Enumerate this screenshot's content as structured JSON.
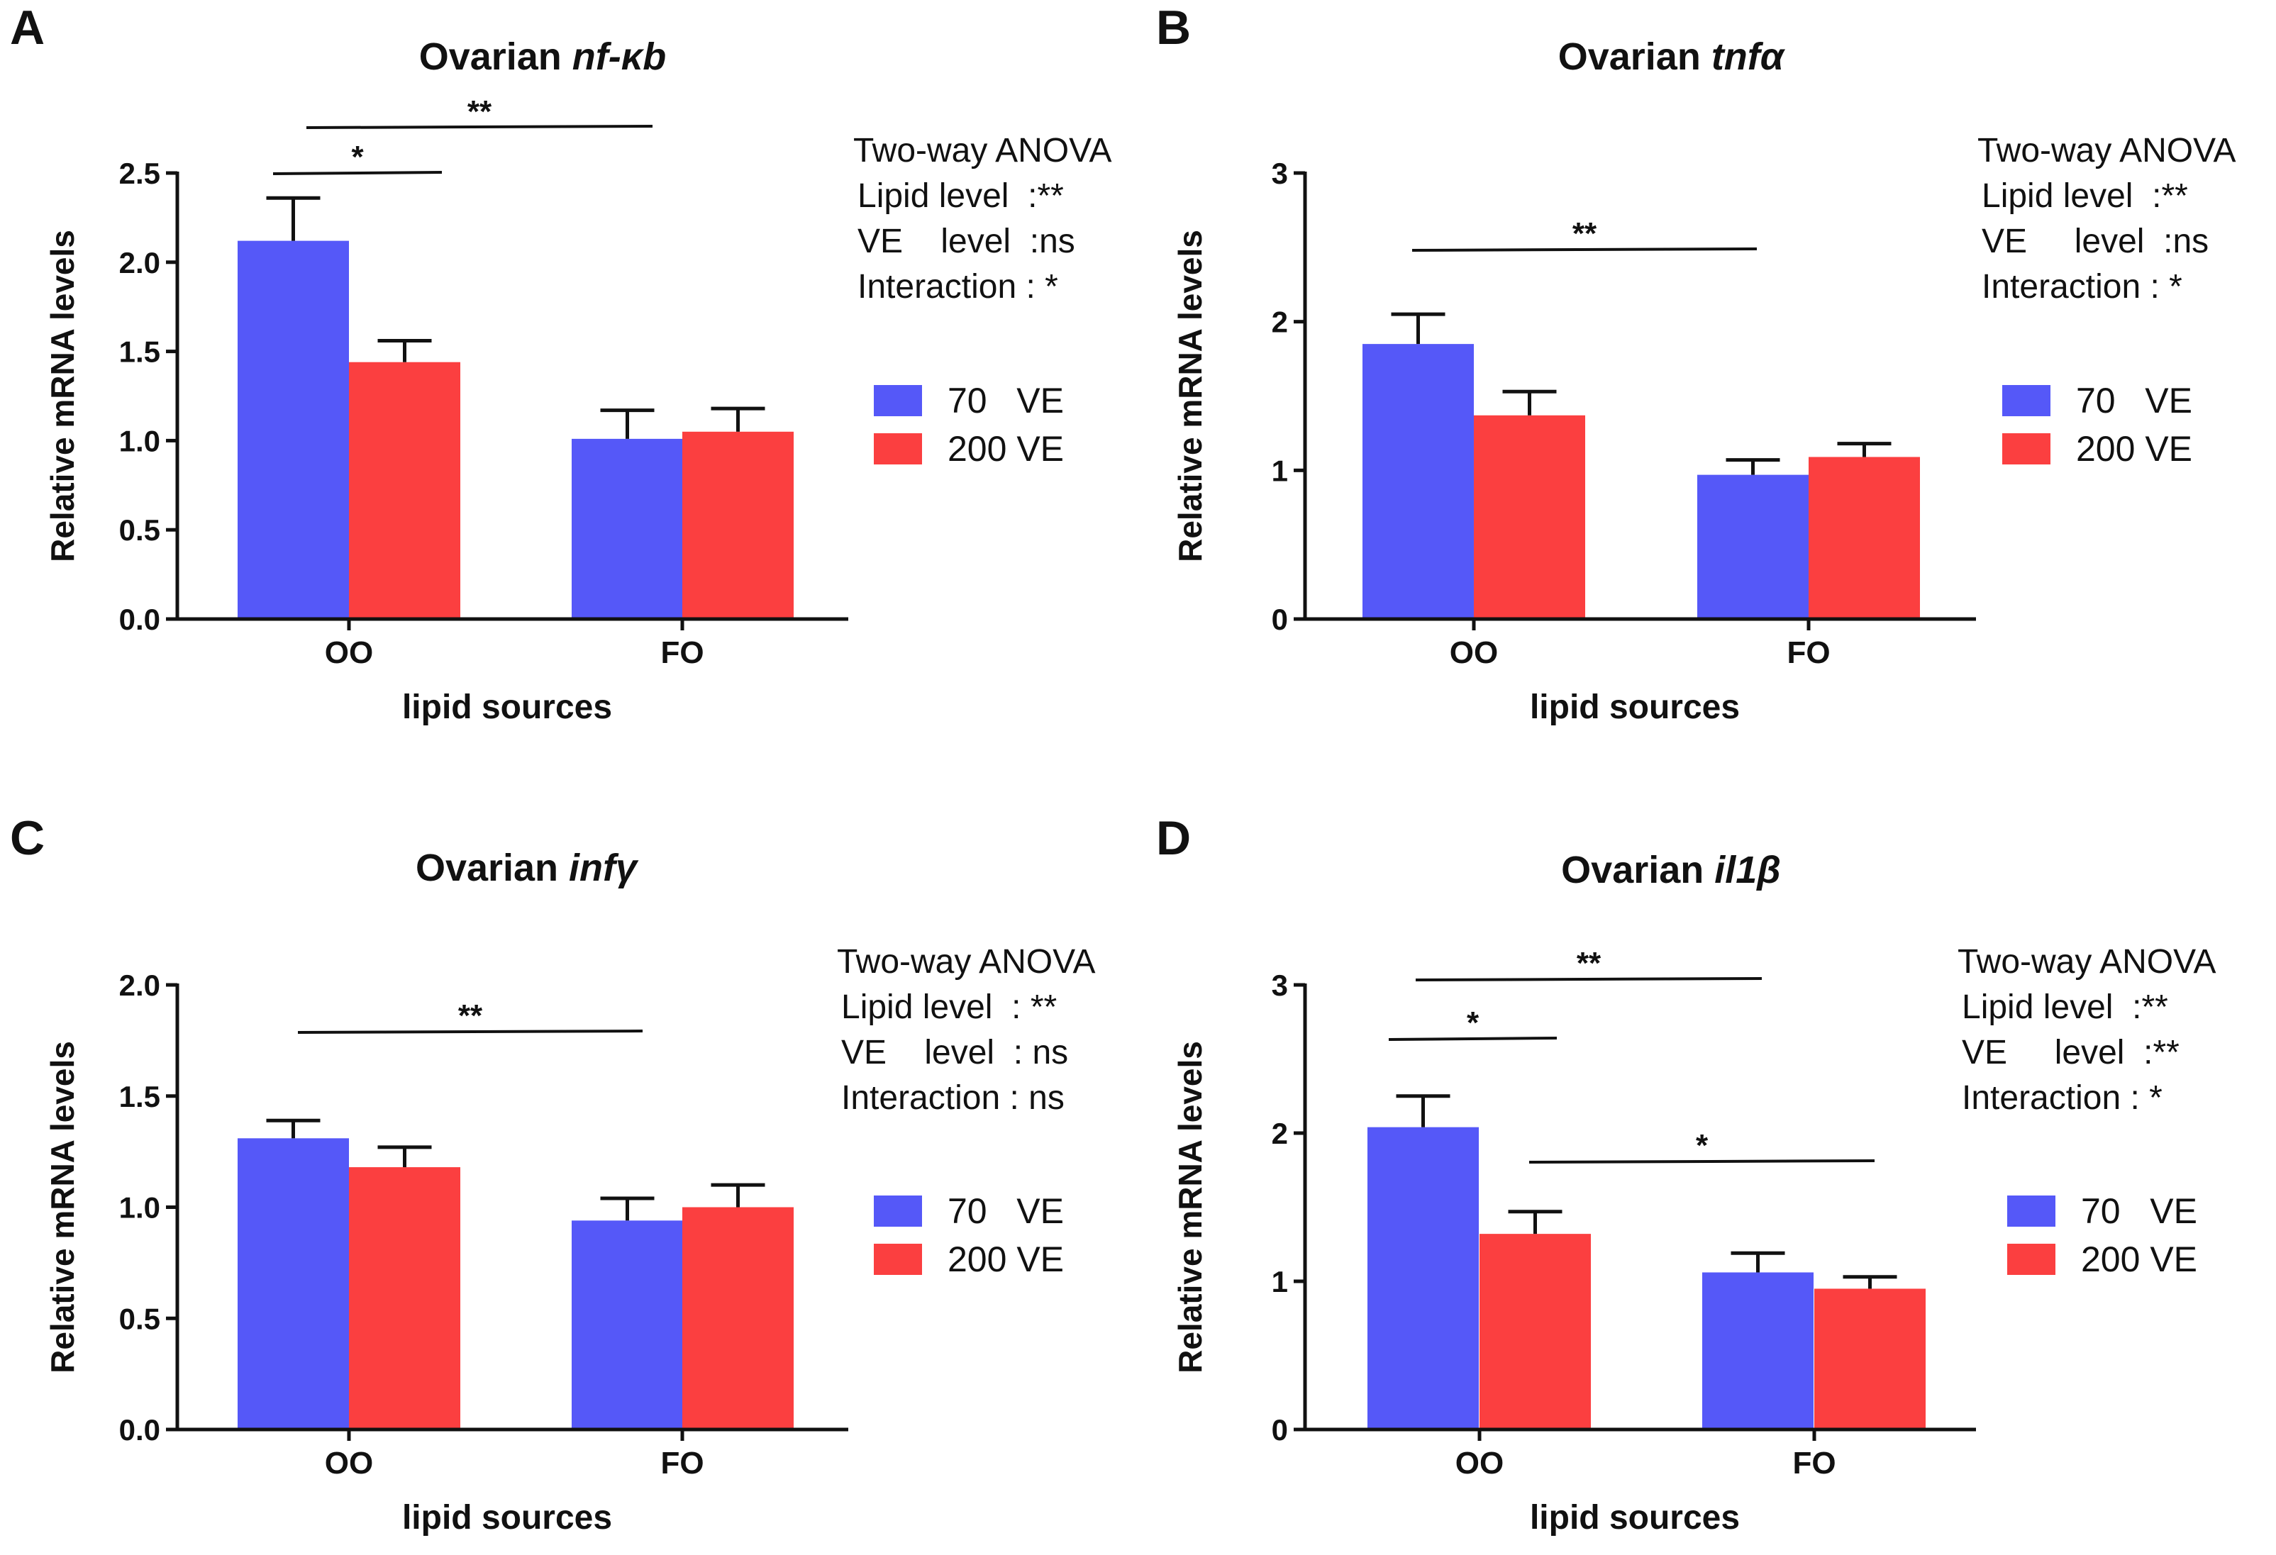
{
  "colors": {
    "series_70": "#5558F8",
    "series_200": "#FB3F40",
    "axis": "#111111"
  },
  "legend": [
    "70   VE",
    "200 VE"
  ],
  "chart_data": [
    {
      "panel": "A",
      "type": "bar",
      "title_prefix": "Ovarian ",
      "title_gene": "nf-κb",
      "ylabel": "Relative mRNA  levels",
      "xlabel": "lipid sources",
      "categories": [
        "OO",
        "FO"
      ],
      "ylim": [
        0,
        2.5
      ],
      "yticks": [
        0.0,
        0.5,
        1.0,
        1.5,
        2.0,
        2.5
      ],
      "ytick_labels": [
        "0.0",
        "0.5",
        "1.0",
        "1.5",
        "2.0",
        "2.5"
      ],
      "series": [
        {
          "name": "70 VE",
          "values": [
            2.12,
            1.01
          ],
          "errors": [
            0.24,
            0.16
          ]
        },
        {
          "name": "200 VE",
          "values": [
            1.44,
            1.05
          ],
          "errors": [
            0.12,
            0.13
          ]
        }
      ],
      "significance": [
        {
          "from": [
            0,
            0
          ],
          "to": [
            0,
            1
          ],
          "y": 2.49,
          "label": "**"
        },
        {
          "from": [
            0,
            0
          ],
          "to": [
            0,
            0.85
          ],
          "y": 2.49,
          "label": "*"
        }
      ],
      "anova": {
        "heading": "Two-way ANOVA",
        "lines": [
          "Lipid level  :**",
          "VE    level  :ns",
          "Interaction : *"
        ]
      }
    },
    {
      "panel": "B",
      "type": "bar",
      "title_prefix": "Ovarian ",
      "title_gene": "tnfα",
      "ylabel": "Relative mRNA  levels",
      "xlabel": "lipid sources",
      "categories": [
        "OO",
        "FO"
      ],
      "ylim": [
        0,
        3
      ],
      "yticks": [
        0,
        1,
        2,
        3
      ],
      "ytick_labels": [
        "0",
        "1",
        "2",
        "3"
      ],
      "series": [
        {
          "name": "70 VE",
          "values": [
            1.85,
            0.97
          ],
          "errors": [
            0.2,
            0.1
          ]
        },
        {
          "name": "200 VE",
          "values": [
            1.37,
            1.09
          ],
          "errors": [
            0.16,
            0.09
          ]
        }
      ],
      "significance": [
        {
          "label": "**"
        }
      ],
      "anova": {
        "heading": "Two-way ANOVA",
        "lines": [
          "Lipid level  :**",
          "VE     level  :ns",
          "Interaction : *"
        ]
      }
    },
    {
      "panel": "C",
      "type": "bar",
      "title_prefix": "Ovarian ",
      "title_gene": "infγ",
      "ylabel": "Relative mRNA  levels",
      "xlabel": "lipid sources",
      "categories": [
        "OO",
        "FO"
      ],
      "ylim": [
        0,
        2.0
      ],
      "yticks": [
        0.0,
        0.5,
        1.0,
        1.5,
        2.0
      ],
      "ytick_labels": [
        "0.0",
        "0.5",
        "1.0",
        "1.5",
        "2.0"
      ],
      "series": [
        {
          "name": "70 VE",
          "values": [
            1.31,
            0.94
          ],
          "errors": [
            0.08,
            0.1
          ]
        },
        {
          "name": "200 VE",
          "values": [
            1.18,
            1.0
          ],
          "errors": [
            0.09,
            0.1
          ]
        }
      ],
      "significance": [
        {
          "label": "**"
        }
      ],
      "anova": {
        "heading": "Two-way ANOVA",
        "lines": [
          "Lipid level  : **",
          "VE    level  : ns",
          "Interaction : ns"
        ]
      }
    },
    {
      "panel": "D",
      "type": "bar",
      "title_prefix": "Ovarian ",
      "title_gene": "il1β",
      "ylabel": "Relative mRNA  levels",
      "xlabel": "lipid sources",
      "categories": [
        "OO",
        "FO"
      ],
      "ylim": [
        0,
        3
      ],
      "yticks": [
        0,
        1,
        2,
        3
      ],
      "ytick_labels": [
        "0",
        "1",
        "2",
        "3"
      ],
      "series": [
        {
          "name": "70 VE",
          "values": [
            2.04,
            1.06
          ],
          "errors": [
            0.21,
            0.13
          ]
        },
        {
          "name": "200 VE",
          "values": [
            1.32,
            0.95
          ],
          "errors": [
            0.15,
            0.08
          ]
        }
      ],
      "significance": [
        {
          "label": "**"
        },
        {
          "label": "*"
        },
        {
          "label": "*"
        }
      ],
      "anova": {
        "heading": "Two-way ANOVA",
        "lines": [
          "Lipid level  :**",
          "VE     level  :**",
          "Interaction : *"
        ]
      }
    }
  ]
}
